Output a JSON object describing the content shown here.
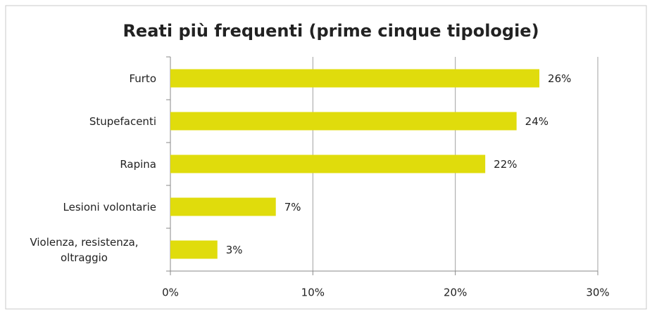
{
  "chart_data": {
    "type": "bar",
    "orientation": "horizontal",
    "title": "Reati più frequenti (prime cinque tipologie)",
    "categories": [
      "Furto",
      "Stupefacenti",
      "Rapina",
      "Lesioni volontarie",
      "Violenza, resistenza, oltraggio"
    ],
    "values": [
      25.9,
      24.3,
      22.1,
      7.4,
      3.3
    ],
    "value_labels": [
      "26%",
      "24%",
      "22%",
      "7%",
      "3%"
    ],
    "color": "#e0dc0c",
    "xlim": [
      0,
      30
    ],
    "xticks": [
      {
        "value": 0,
        "label": "0%"
      },
      {
        "value": 10,
        "label": "10%"
      },
      {
        "value": 20,
        "label": "20%"
      },
      {
        "value": 30,
        "label": "30%"
      }
    ],
    "grid": true
  }
}
